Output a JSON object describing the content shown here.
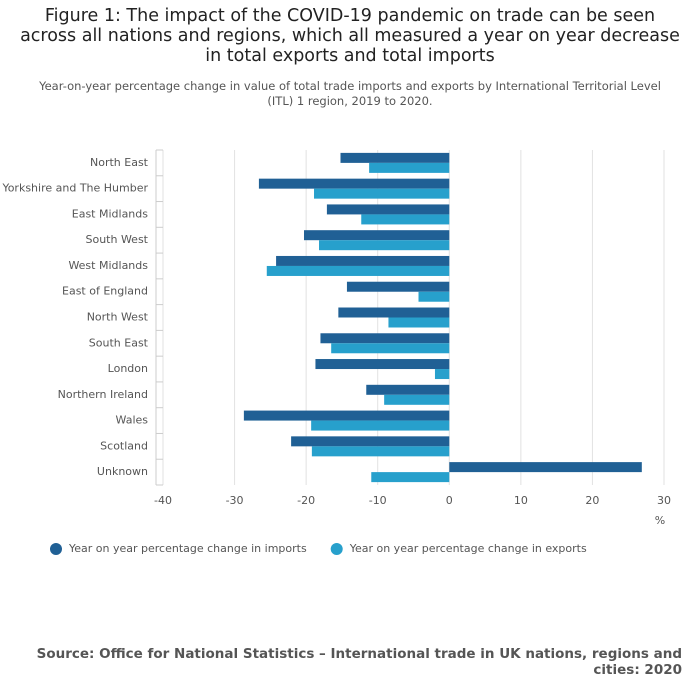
{
  "chart_data": {
    "type": "hbar",
    "title": "Figure 1: The impact of the COVID-19 pandemic on trade can be seen across all nations and regions, which all measured a year on year decrease in total exports and total imports",
    "subtitle": "Year-on-year percentage change in value of total trade imports and exports by International Territorial Level (ITL) 1 region, 2019 to 2020.",
    "source": "Source: Office for National Statistics – International trade in UK nations, regions and cities: 2020",
    "x_label": "%",
    "categories": [
      "North East",
      "Yorkshire and The Humber",
      "East Midlands",
      "South West",
      "West Midlands",
      "East of England",
      "North West",
      "South East",
      "London",
      "Northern Ireland",
      "Wales",
      "Scotland",
      "Unknown"
    ],
    "series": [
      {
        "name": "Year on year percentage change in imports",
        "color": "#206095",
        "values": [
          -15.2,
          -26.6,
          -17.1,
          -20.3,
          -24.2,
          -14.3,
          -15.5,
          -18.0,
          -18.7,
          -11.6,
          -28.7,
          -22.1,
          26.9
        ]
      },
      {
        "name": "Year on year percentage change in exports",
        "color": "#27a0cc",
        "values": [
          -11.2,
          -18.9,
          -12.3,
          -18.2,
          -25.5,
          -4.3,
          -8.5,
          -16.5,
          -2.0,
          -9.1,
          -19.3,
          -19.2,
          -10.9
        ]
      }
    ],
    "xlim": [
      -40,
      30
    ],
    "xticks": [
      -40,
      -30,
      -20,
      -10,
      0,
      10,
      20,
      30
    ],
    "grid": true,
    "legend": "bottom"
  }
}
